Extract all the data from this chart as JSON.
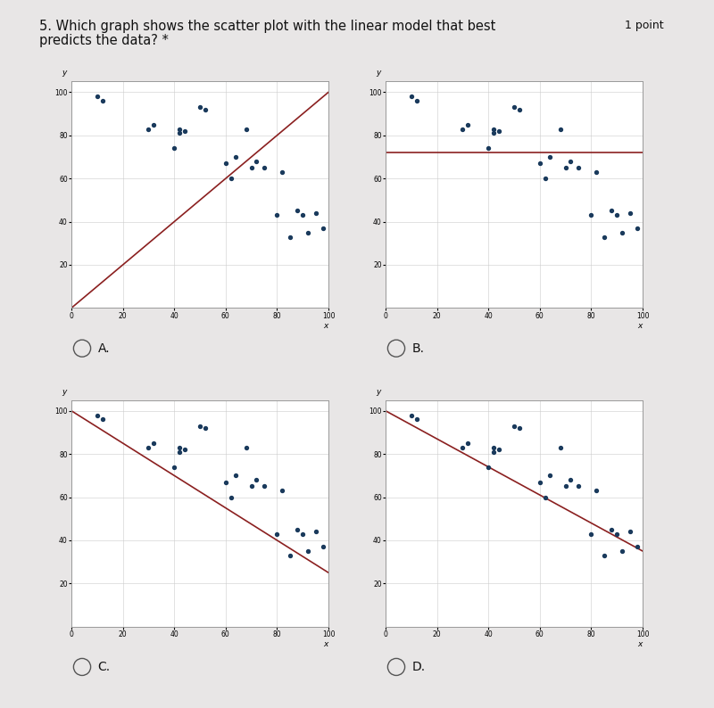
{
  "title_line1": "5. Which graph shows the scatter plot with the linear model that best",
  "title_line2": "predicts the data? *",
  "title_fontsize": 10.5,
  "point_label": "1 point",
  "bg_color": "#e8e6e6",
  "plot_bg_color": "#ffffff",
  "dot_color": "#1a3a5c",
  "line_color": "#8b2020",
  "scatter_x": [
    10,
    12,
    30,
    32,
    40,
    42,
    44,
    42,
    50,
    52,
    60,
    62,
    64,
    68,
    70,
    72,
    75,
    80,
    82,
    85,
    88,
    90,
    92,
    95,
    98
  ],
  "scatter_y": [
    98,
    96,
    83,
    85,
    74,
    83,
    82,
    81,
    93,
    92,
    67,
    60,
    70,
    83,
    65,
    68,
    65,
    43,
    63,
    33,
    45,
    43,
    35,
    44,
    37
  ],
  "labels": [
    "A.",
    "B.",
    "C.",
    "D."
  ],
  "line_A": [
    0,
    0,
    100,
    100
  ],
  "line_B": [
    0,
    72,
    100,
    72
  ],
  "line_C": [
    0,
    100,
    100,
    25
  ],
  "line_D": [
    0,
    100,
    100,
    35
  ],
  "radio_color": "#555555",
  "tick_fontsize": 5.5,
  "axis_label_fontsize": 6.5,
  "grid_color": "#cccccc",
  "spine_color": "#999999"
}
